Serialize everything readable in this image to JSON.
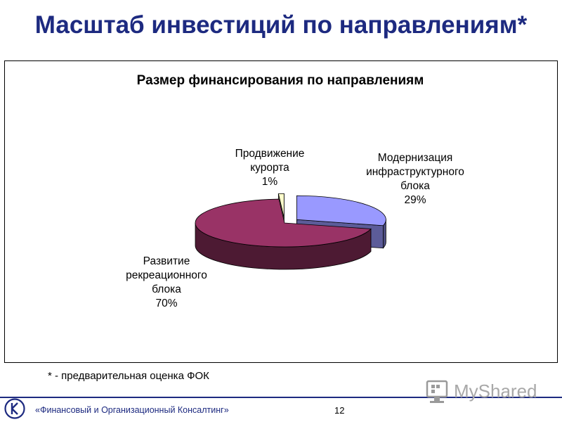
{
  "slide": {
    "title": "Масштаб инвестиций по направлениям*",
    "footnote": "* - предварительная оценка ФОК",
    "company": "«Финансовый и Организационный Консалтинг»",
    "page_number": "12",
    "watermark_text": "MyShared"
  },
  "chart_data": {
    "type": "pie",
    "title": "Размер финансирования по направлениям",
    "three_d": true,
    "slices": [
      {
        "name": "Модернизация инфраструктурного блока",
        "label_lines": [
          "Модернизация",
          "инфраструктурного",
          "блока"
        ],
        "value": 29,
        "value_label": "29%",
        "color": "#9999ff",
        "exploded": true
      },
      {
        "name": "Развитие рекреационного блока",
        "label_lines": [
          "Развитие",
          "рекреационного",
          "блока"
        ],
        "value": 70,
        "value_label": "70%",
        "color": "#993366",
        "exploded": false
      },
      {
        "name": "Продвижение курорта",
        "label_lines": [
          "Продвижение",
          "курорта"
        ],
        "value": 1,
        "value_label": "1%",
        "color": "#ffffcc",
        "exploded": true
      }
    ],
    "legend": "none"
  }
}
